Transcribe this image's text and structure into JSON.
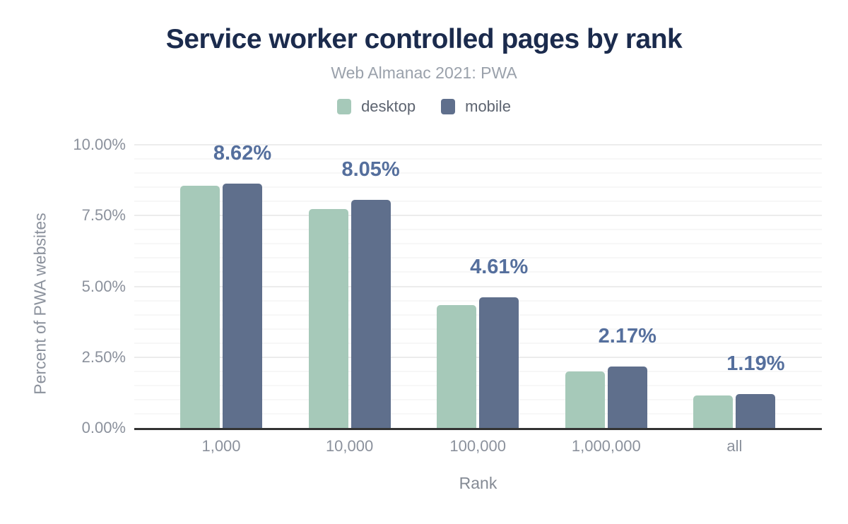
{
  "chart_data": {
    "type": "bar",
    "title": "Service worker controlled pages by rank",
    "subtitle": "Web Almanac 2021: PWA",
    "xlabel": "Rank",
    "ylabel": "Percent of PWA websites",
    "categories": [
      "1,000",
      "10,000",
      "100,000",
      "1,000,000",
      "all"
    ],
    "series": [
      {
        "name": "desktop",
        "color": "#a6c9b9",
        "values": [
          8.55,
          7.72,
          4.33,
          2.0,
          1.15
        ]
      },
      {
        "name": "mobile",
        "color": "#5f6f8c",
        "values": [
          8.62,
          8.05,
          4.61,
          2.17,
          1.19
        ]
      }
    ],
    "data_labels": {
      "labeled_series": "mobile",
      "values": [
        "8.62%",
        "8.05%",
        "4.61%",
        "2.17%",
        "1.19%"
      ]
    },
    "y_axis": {
      "min": 0,
      "max": 10,
      "major_ticks": [
        {
          "label": "10.00%",
          "value": 10
        },
        {
          "label": "7.50%",
          "value": 7.5
        },
        {
          "label": "5.00%",
          "value": 5
        },
        {
          "label": "2.50%",
          "value": 2.5
        },
        {
          "label": "0.00%",
          "value": 0
        }
      ],
      "minor_step": 0.5
    },
    "legend_position": "top",
    "grid": true,
    "colors": {
      "title": "#1b2b4d",
      "subtitle": "#9aa1ab",
      "legend_text": "#5d6470",
      "tick_label": "#8b919c",
      "axis_title": "#848a94",
      "data_label": "#556f9d",
      "axis_line": "#333333",
      "grid_major": "#ececec",
      "grid_minor": "#f7f7f7",
      "background": "#ffffff"
    }
  }
}
